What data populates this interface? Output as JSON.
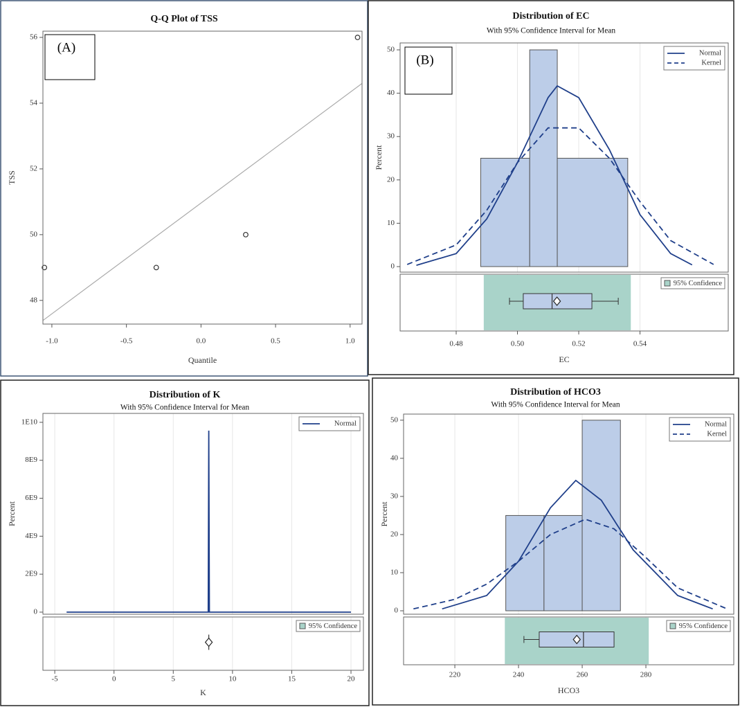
{
  "chart_data": [
    {
      "type": "qq",
      "title": "Q-Q Plot of TSS",
      "panel_label": "(A)",
      "x_label": "Quantile",
      "y_label": "TSS",
      "x": [
        -1.05,
        -0.3,
        0.3,
        1.05
      ],
      "values": [
        49,
        49,
        50,
        56
      ],
      "color": "#333333",
      "reference_line": {
        "x": [
          -1.06,
          1.08
        ],
        "values": [
          47.39,
          54.6
        ],
        "color": "#aaaaaa"
      },
      "xlim": [
        -1.06,
        1.08
      ],
      "ylim": [
        47.28,
        56.19
      ],
      "xticks": [
        {
          "value": -1,
          "label": "-1.0"
        },
        -0.5,
        {
          "value": 0,
          "label": "0.0"
        },
        0.5,
        {
          "value": 1,
          "label": "1.0"
        }
      ],
      "yticks": [
        48,
        50,
        52,
        54,
        56
      ]
    },
    {
      "type": "histogram",
      "title": "Distribution of EC",
      "subtitle": "With 95% Confidence Interval for Mean",
      "panel_label": "(B)",
      "x_label": "EC",
      "y_label": "Percent",
      "bins": [
        0.488,
        0.504,
        0.513,
        0.536
      ],
      "counts": [
        25,
        50,
        25
      ],
      "color": "#bccde8",
      "series": [
        {
          "name": "Normal",
          "style": "solid",
          "color": "#1f3f8a",
          "x": [
            0.467,
            0.48,
            0.49,
            0.5,
            0.51,
            0.513,
            0.52,
            0.53,
            0.54,
            0.55,
            0.557
          ],
          "values": [
            0.3,
            3,
            11,
            24,
            39,
            41.7,
            39,
            27,
            12,
            3,
            0.4
          ]
        },
        {
          "name": "Kernel",
          "style": "dashed",
          "color": "#1f3f8a",
          "x": [
            0.464,
            0.48,
            0.49,
            0.5,
            0.51,
            0.52,
            0.53,
            0.54,
            0.55,
            0.564
          ],
          "values": [
            0.5,
            5,
            13,
            24,
            32,
            32,
            25,
            15,
            6,
            0.5
          ]
        }
      ],
      "legend": "top-right",
      "inset_legend": "95% Confidence",
      "ci": [
        0.489,
        0.537
      ],
      "ci_color": "#a9d3c9",
      "boxplot": {
        "whisker_low": 0.4974,
        "q1": 0.5019,
        "median": 0.5113,
        "q3": 0.5243,
        "whisker_high": 0.5329,
        "mean": 0.5129
      },
      "xlim": [
        0.4617,
        0.5688
      ],
      "ylim": [
        -1.28,
        51.6
      ],
      "xticks": [
        0.48,
        {
          "value": 0.5,
          "label": "0.50"
        },
        0.52,
        0.54
      ],
      "yticks": [
        0,
        10,
        20,
        30,
        40,
        50
      ],
      "grid": "x"
    },
    {
      "type": "histogram",
      "title": "Distribution of K",
      "subtitle": "With 95% Confidence Interval for Mean",
      "x_label": "K",
      "y_label": "Percent",
      "series": [
        {
          "name": "Normal",
          "style": "solid",
          "color": "#1f3f8a",
          "x": [
            -4,
            7.95,
            8,
            8.05,
            20
          ],
          "values": [
            0,
            0,
            9560000000,
            0,
            0
          ]
        }
      ],
      "legend": "top-right",
      "inset_legend": "95% Confidence",
      "ci_color": "#a9d3c9",
      "boxplot": {
        "q1": 8,
        "median": 8,
        "q3": 8,
        "mean": 8
      },
      "xlim": [
        -6,
        21.05
      ],
      "ylim": [
        -110000000,
        10470000000
      ],
      "xticks": [
        -5,
        0,
        5,
        10,
        15,
        20
      ],
      "yticks": [
        0,
        {
          "value": 2000000000,
          "label": "2E9"
        },
        {
          "value": 4000000000,
          "label": "4E9"
        },
        {
          "value": 6000000000,
          "label": "6E9"
        },
        {
          "value": 8000000000,
          "label": "8E9"
        },
        {
          "value": 10000000000,
          "label": "1E10"
        }
      ],
      "grid": "x"
    },
    {
      "type": "histogram",
      "title": "Distribution of HCO3",
      "subtitle": "With 95% Confidence Interval for Mean",
      "x_label": "HCO3",
      "y_label": "Percent",
      "bins": [
        236,
        248,
        260,
        272
      ],
      "counts": [
        25,
        25,
        50
      ],
      "color": "#bccde8",
      "series": [
        {
          "name": "Normal",
          "style": "solid",
          "color": "#1f3f8a",
          "x": [
            216,
            230,
            240,
            250,
            258,
            266,
            276,
            290,
            301
          ],
          "values": [
            0.5,
            4,
            13,
            27,
            34.2,
            29,
            16,
            4,
            0.5
          ]
        },
        {
          "name": "Kernel",
          "style": "dashed",
          "color": "#1f3f8a",
          "x": [
            207,
            220,
            230,
            240,
            250,
            261,
            270,
            280,
            290,
            305.5
          ],
          "values": [
            0.5,
            3,
            7,
            13,
            20,
            24,
            21.5,
            14,
            6,
            0.5
          ]
        }
      ],
      "legend": "top-right",
      "inset_legend": "95% Confidence",
      "ci": [
        235.7,
        280.9
      ],
      "ci_color": "#a9d3c9",
      "boxplot": {
        "whisker_low": 241.7,
        "q1": 246.5,
        "median": 260.4,
        "q3": 270,
        "mean": 258.3
      },
      "xlim": [
        203.9,
        307.6
      ],
      "ylim": [
        -0.9,
        51.6
      ],
      "xticks": [
        220,
        240,
        260,
        280
      ],
      "yticks": [
        0,
        10,
        20,
        30,
        40,
        50
      ],
      "grid": "x"
    }
  ]
}
